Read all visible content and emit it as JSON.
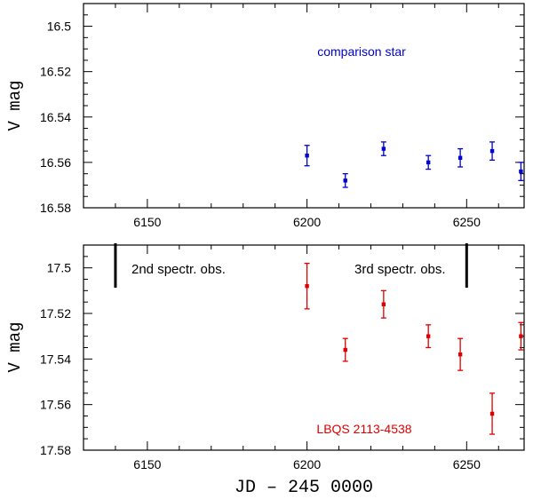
{
  "chart_data": [
    {
      "type": "scatter",
      "panel": "top",
      "title": "",
      "xlabel": "",
      "ylabel": "V mag",
      "xlim": [
        6130,
        6268
      ],
      "ylim": [
        16.58,
        16.49
      ],
      "y_inverted": true,
      "x_ticks": [
        6150,
        6200,
        6250
      ],
      "x_tick_labels": [
        "6150",
        "6200",
        "6250"
      ],
      "y_ticks": [
        16.5,
        16.52,
        16.54,
        16.56,
        16.58
      ],
      "y_tick_labels": [
        "16.5",
        "16.52",
        "16.54",
        "16.56",
        "16.58"
      ],
      "annotations": [
        {
          "text": "comparison star",
          "color": "#0000cc",
          "position": "top-center"
        }
      ],
      "series": [
        {
          "name": "comparison star",
          "color": "#0000cc",
          "points": [
            {
              "x": 6200,
              "y": 16.557,
              "err": 0.0045
            },
            {
              "x": 6212,
              "y": 16.568,
              "err": 0.003
            },
            {
              "x": 6224,
              "y": 16.554,
              "err": 0.003
            },
            {
              "x": 6238,
              "y": 16.56,
              "err": 0.003
            },
            {
              "x": 6248,
              "y": 16.558,
              "err": 0.004
            },
            {
              "x": 6258,
              "y": 16.555,
              "err": 0.004
            },
            {
              "x": 6267,
              "y": 16.564,
              "err": 0.004
            }
          ]
        }
      ]
    },
    {
      "type": "scatter",
      "panel": "bottom",
      "title": "",
      "xlabel": "JD – 245 0000",
      "ylabel": "V mag",
      "xlim": [
        6130,
        6268
      ],
      "ylim": [
        17.58,
        17.49
      ],
      "y_inverted": true,
      "x_ticks": [
        6150,
        6200,
        6250
      ],
      "x_tick_labels": [
        "6150",
        "6200",
        "6250"
      ],
      "y_ticks": [
        17.5,
        17.52,
        17.54,
        17.56,
        17.58
      ],
      "y_tick_labels": [
        "17.5",
        "17.52",
        "17.54",
        "17.56",
        "17.58"
      ],
      "annotations": [
        {
          "text": "2nd spectr. obs.",
          "color": "#000000",
          "position": "top-left"
        },
        {
          "text": "3rd spectr. obs.",
          "color": "#000000",
          "position": "top-right"
        },
        {
          "text": "LBQS 2113-4538",
          "color": "#dd0000",
          "position": "bottom-center"
        }
      ],
      "markers": [
        {
          "label": "2nd spectr. obs.",
          "x": 6140
        },
        {
          "label": "3rd spectr. obs.",
          "x": 6250
        }
      ],
      "series": [
        {
          "name": "LBQS 2113-4538",
          "color": "#dd0000",
          "points": [
            {
              "x": 6200,
              "y": 17.508,
              "err": 0.01
            },
            {
              "x": 6212,
              "y": 17.536,
              "err": 0.005
            },
            {
              "x": 6224,
              "y": 17.516,
              "err": 0.006
            },
            {
              "x": 6238,
              "y": 17.53,
              "err": 0.005
            },
            {
              "x": 6248,
              "y": 17.538,
              "err": 0.007
            },
            {
              "x": 6258,
              "y": 17.564,
              "err": 0.009
            },
            {
              "x": 6267,
              "y": 17.53,
              "err": 0.006
            }
          ]
        }
      ]
    }
  ]
}
